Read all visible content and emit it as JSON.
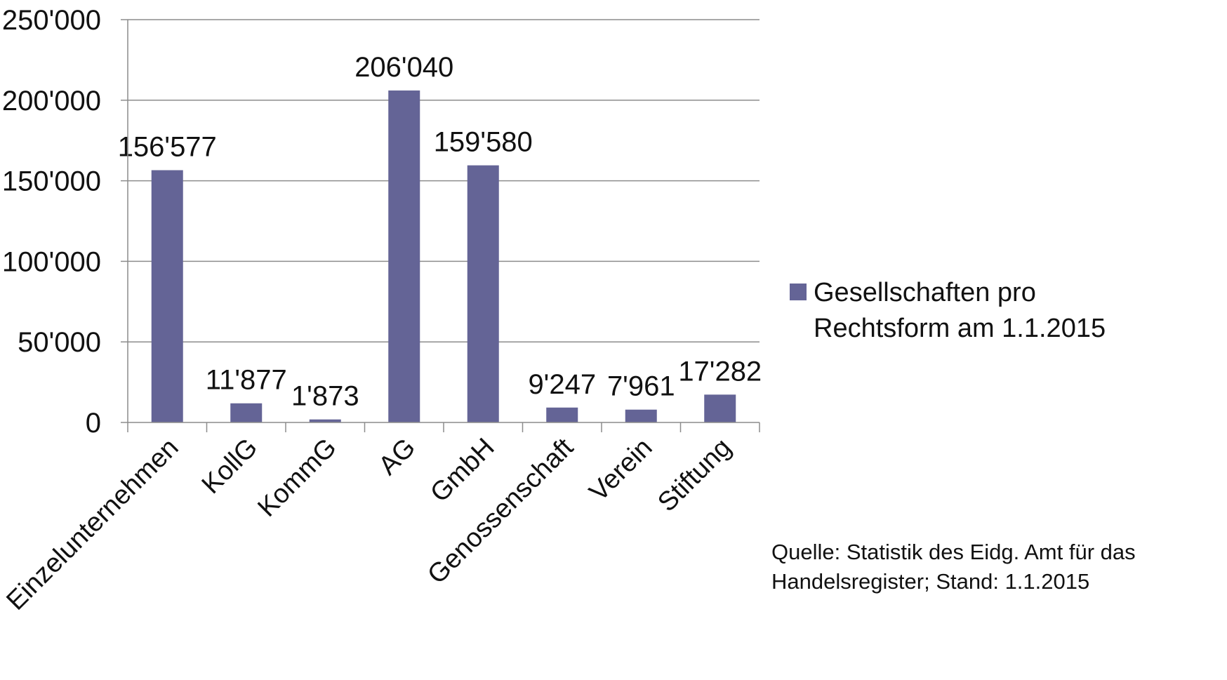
{
  "chart_data": {
    "type": "bar",
    "categories": [
      "Einzelunternehmen",
      "KollG",
      "KommG",
      "AG",
      "GmbH",
      "Genossenschaft",
      "Verein",
      "Stiftung"
    ],
    "series": [
      {
        "name": "Gesellschaften pro Rechtsform am 1.1.2015",
        "name_lines": [
          "Gesellschaften pro",
          "Rechtsform am 1.1.2015"
        ],
        "values": [
          156577,
          11877,
          1873,
          206040,
          159580,
          9247,
          7961,
          17282
        ],
        "value_labels": [
          "156'577",
          "11'877",
          "1'873",
          "206'040",
          "159'580",
          "9'247",
          "7'961",
          "17'282"
        ],
        "color": "#646496"
      }
    ],
    "title": "",
    "xlabel": "",
    "ylabel": "",
    "ylim": [
      0,
      250000
    ],
    "yticks": [
      0,
      50000,
      100000,
      150000,
      200000,
      250000
    ],
    "ytick_labels": [
      "0",
      "50'000",
      "100'000",
      "150'000",
      "200'000",
      "250'000"
    ],
    "grid": true,
    "gridline_color": "#8c8c8c",
    "legend_position": "right",
    "source_lines": [
      "Quelle: Statistik des Eidg. Amt für das",
      "Handelsregister; Stand: 1.1.2015"
    ]
  }
}
